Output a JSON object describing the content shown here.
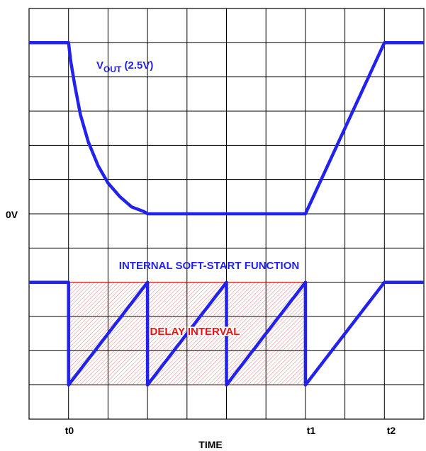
{
  "chart_data": {
    "type": "line",
    "xlabel": "TIME",
    "ylabel": "",
    "x_ticks": [
      "t0",
      "t1",
      "t2"
    ],
    "y_ticks": [
      "0V"
    ],
    "grid": true,
    "x_range": [
      0,
      10
    ],
    "y_range": [
      0,
      11
    ],
    "colors": {
      "trace": "#2222ee",
      "delay_fill": "#cc2222",
      "grid": "#000000",
      "delay_text": "#ee1111"
    },
    "series": [
      {
        "name": "VOUT (2.5V)",
        "label_main": "V",
        "label_sub": "OUT",
        "label_rest": " (2.5V)",
        "points": [
          [
            0,
            10
          ],
          [
            1,
            10
          ],
          [
            1.05,
            9.5
          ],
          [
            1.15,
            8.8
          ],
          [
            1.3,
            7.9
          ],
          [
            1.5,
            7.1
          ],
          [
            1.75,
            6.4
          ],
          [
            2.0,
            5.9
          ],
          [
            2.3,
            5.5
          ],
          [
            2.6,
            5.2
          ],
          [
            2.9,
            5.07
          ],
          [
            3.0,
            5
          ],
          [
            7,
            5
          ],
          [
            9,
            10
          ],
          [
            10,
            10
          ]
        ]
      },
      {
        "name": "INTERNAL SOFT-START FUNCTION",
        "points": [
          [
            0,
            3
          ],
          [
            1,
            3
          ],
          [
            1,
            0
          ],
          [
            3,
            3
          ],
          [
            3,
            0
          ],
          [
            5,
            3
          ],
          [
            5,
            0
          ],
          [
            7,
            3
          ],
          [
            7,
            0
          ],
          [
            9,
            3
          ],
          [
            10,
            3
          ]
        ]
      }
    ],
    "annotations": [
      {
        "text": "DELAY INTERVAL",
        "x_start": 1,
        "x_end": 7,
        "y_low": 0,
        "y_high": 3
      }
    ]
  }
}
